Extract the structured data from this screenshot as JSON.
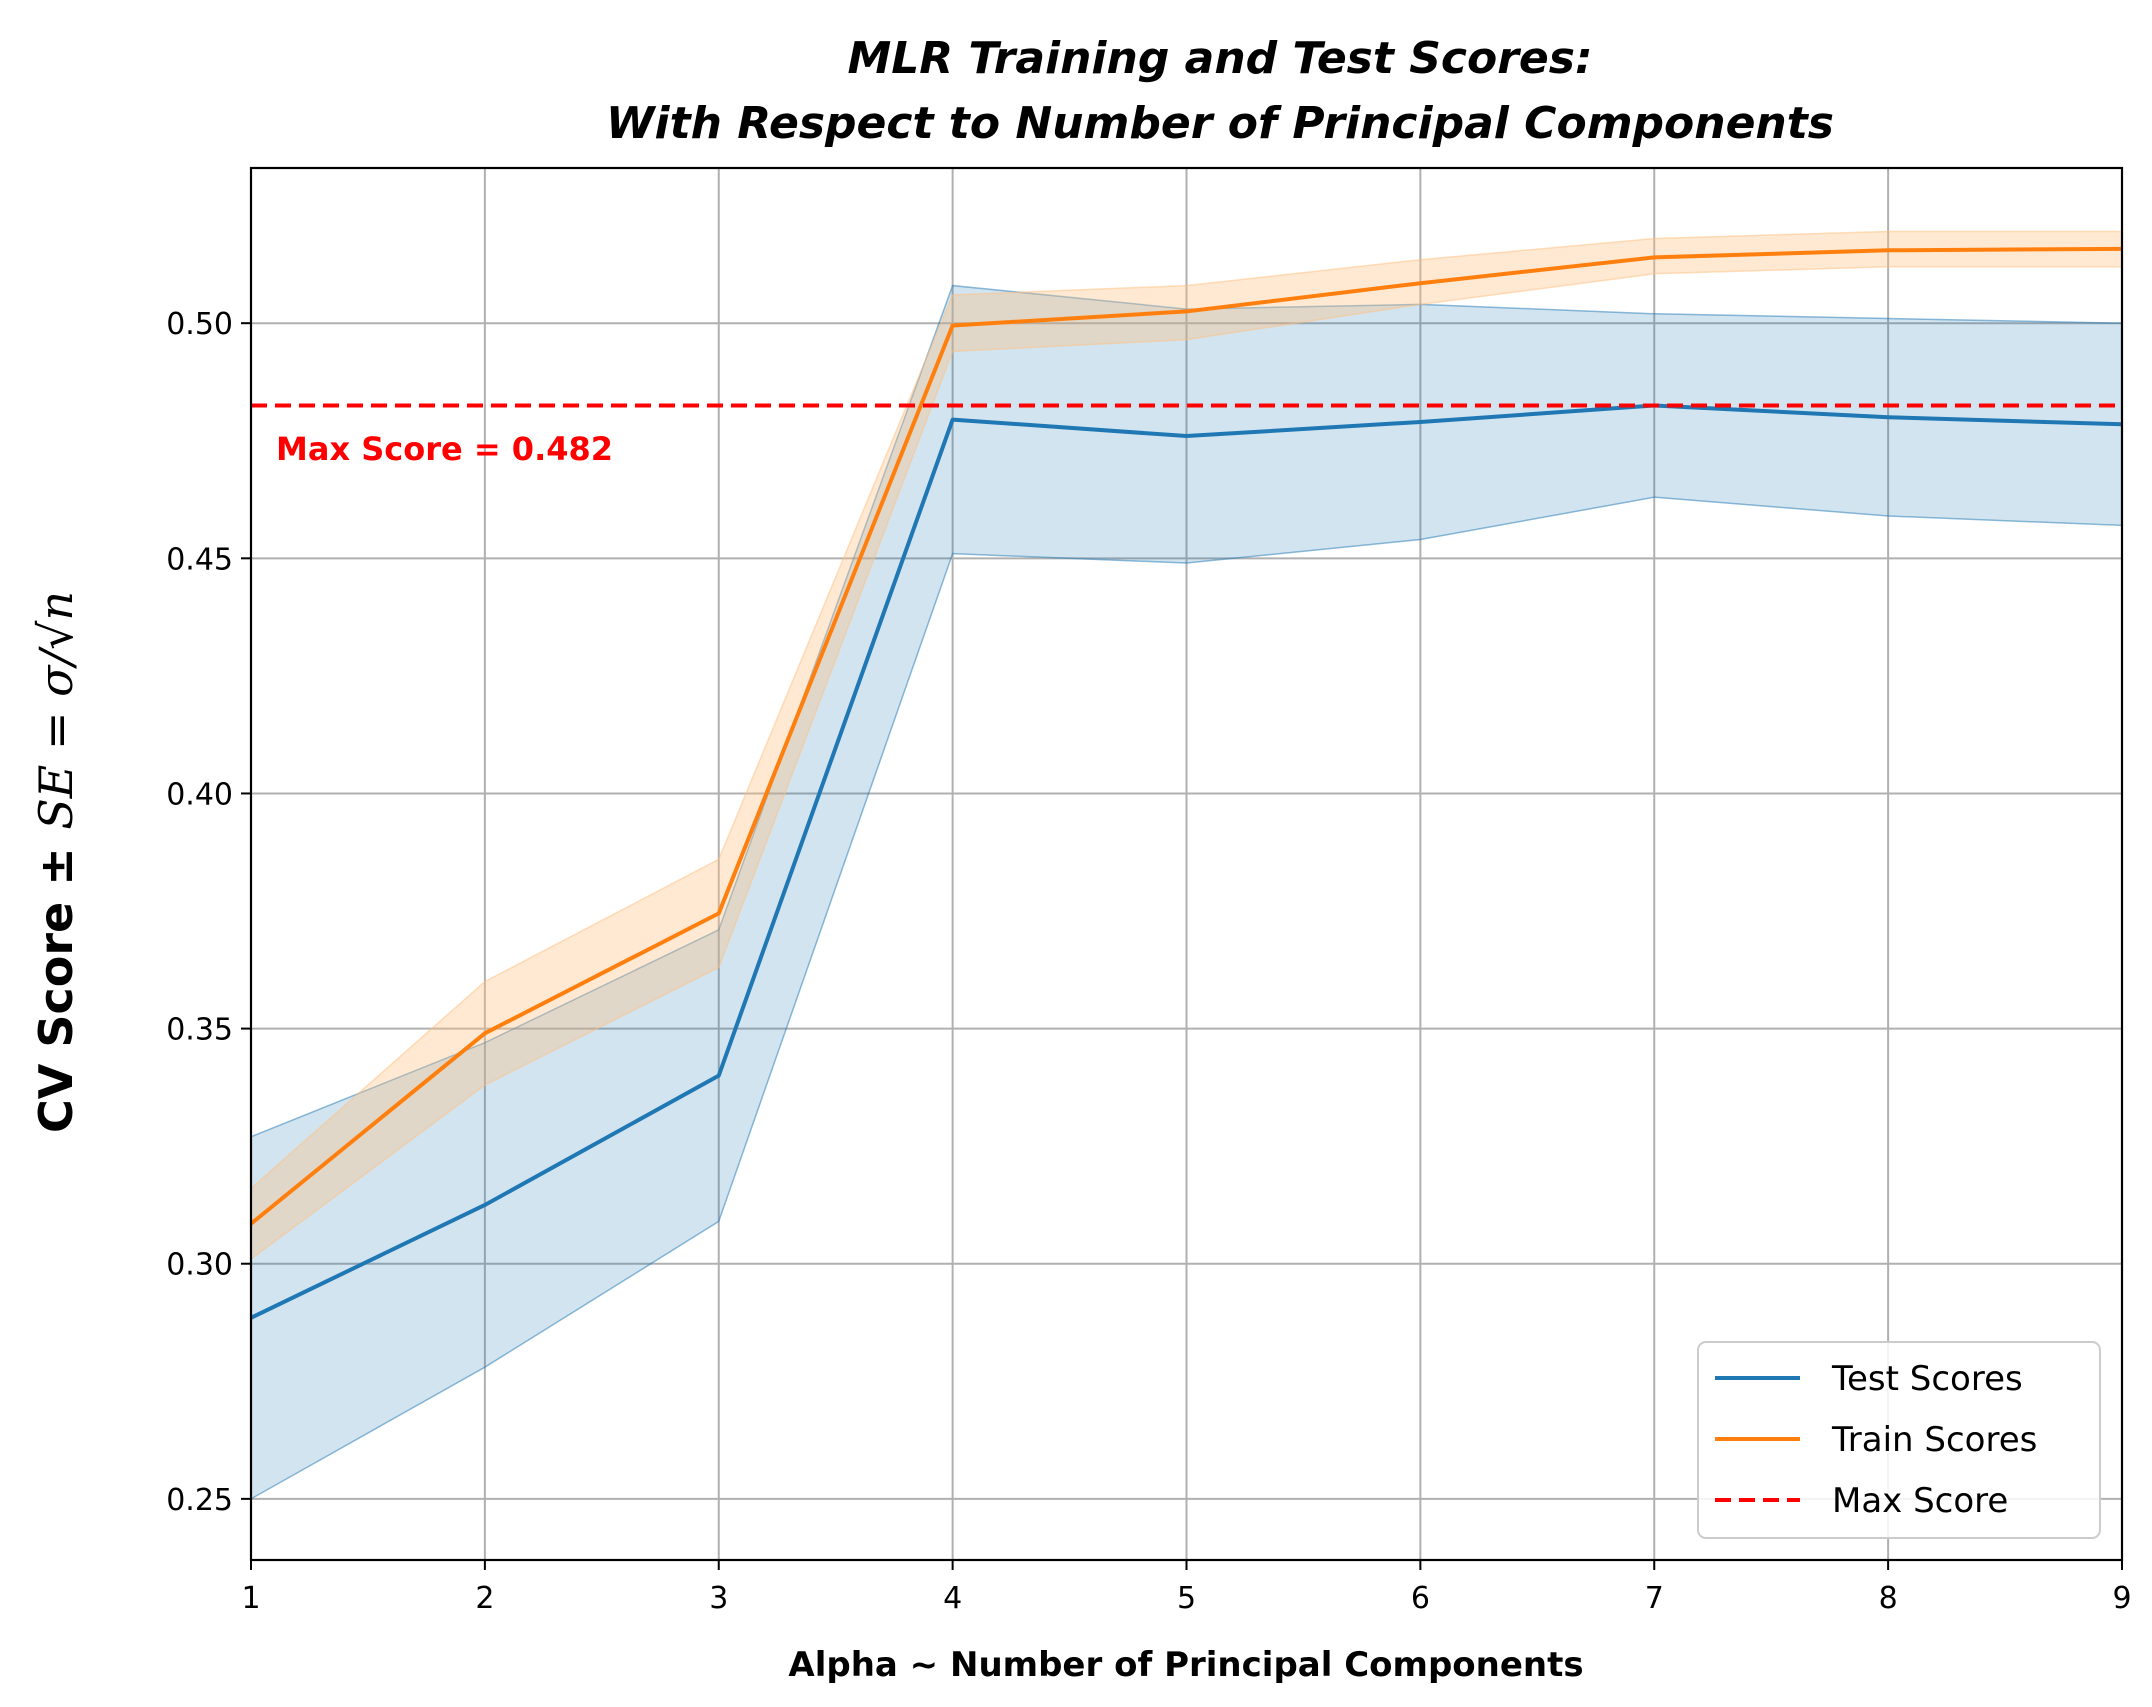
{
  "chart_data": {
    "type": "line",
    "title_line1": "MLR Training and Test Scores:",
    "title_line2": "With Respect to Number of Principal Components",
    "xlabel": "Alpha ~ Number of Principal Components",
    "ylabel_prefix": "CV Score ±",
    "ylabel_math": "SE = σ/√n",
    "x": [
      1,
      2,
      3,
      4,
      5,
      6,
      7,
      8,
      9
    ],
    "xlim": [
      1,
      9
    ],
    "ylim": [
      0.237,
      0.533
    ],
    "xticks": [
      "1",
      "2",
      "3",
      "4",
      "5",
      "6",
      "7",
      "8",
      "9"
    ],
    "yticks": [
      "0.25",
      "0.30",
      "0.35",
      "0.40",
      "0.45",
      "0.50"
    ],
    "ytick_values": [
      0.25,
      0.3,
      0.35,
      0.4,
      0.45,
      0.5
    ],
    "grid": true,
    "legend_position": "lower-right",
    "series": [
      {
        "name": "Test Scores",
        "color": "#1f77b4",
        "band_color": "#1f77b4",
        "values": [
          0.2885,
          0.3125,
          0.34,
          0.4795,
          0.476,
          0.479,
          0.4825,
          0.48,
          0.4785
        ],
        "lower": [
          0.25,
          0.278,
          0.309,
          0.451,
          0.449,
          0.454,
          0.463,
          0.459,
          0.457
        ],
        "upper": [
          0.327,
          0.347,
          0.371,
          0.508,
          0.503,
          0.504,
          0.502,
          0.501,
          0.5
        ]
      },
      {
        "name": "Train Scores",
        "color": "#ff7f0e",
        "band_color": "#ffbf80",
        "values": [
          0.3085,
          0.349,
          0.3745,
          0.4995,
          0.5025,
          0.5085,
          0.514,
          0.5155,
          0.5158
        ],
        "lower": [
          0.301,
          0.338,
          0.363,
          0.494,
          0.4965,
          0.504,
          0.5105,
          0.512,
          0.512
        ],
        "upper": [
          0.316,
          0.36,
          0.386,
          0.506,
          0.508,
          0.5135,
          0.518,
          0.5195,
          0.5195
        ]
      }
    ],
    "reference_line": {
      "name": "Max Score",
      "value": 0.4825,
      "color": "#ff0000",
      "label": "Max Score = 0.482"
    }
  }
}
